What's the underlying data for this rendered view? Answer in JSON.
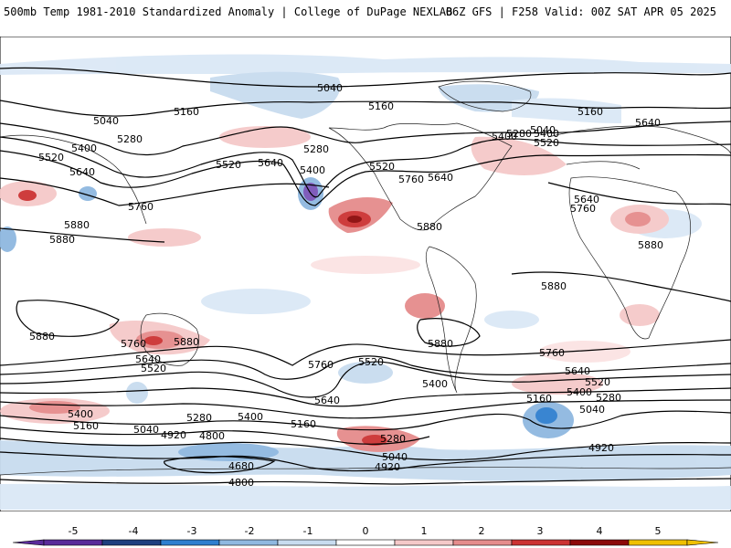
{
  "header": {
    "left": "500mb Temp 1981-2010 Standardized Anomaly | College of DuPage NEXLAB",
    "right": "06Z GFS | F258 Valid: 00Z SAT APR 05 2025"
  },
  "colorbar": {
    "ticks": [
      "-5",
      "-4",
      "-3",
      "-2",
      "-1",
      "0",
      "1",
      "2",
      "3",
      "4",
      "5"
    ],
    "colors": [
      "#5a2a9a",
      "#1f3f7f",
      "#2f7fcf",
      "#8fb8e0",
      "#c8dcef",
      "#ffffff",
      "#f5c9c9",
      "#e58c8c",
      "#cc3333",
      "#8c0a0a",
      "#f0c000"
    ]
  },
  "contour_labels": [
    "5040",
    "5160",
    "5280",
    "5400",
    "5520",
    "5640",
    "5760",
    "5880",
    "5160",
    "5040",
    "5280",
    "5400",
    "5520",
    "5640",
    "5400",
    "5520",
    "5760",
    "5640",
    "5880",
    "5880",
    "5880",
    "5640",
    "5760",
    "5880",
    "5160",
    "5640",
    "5520",
    "5400",
    "5280",
    "5040",
    "5880",
    "5760",
    "5880",
    "5640",
    "5520",
    "5400",
    "5160",
    "5040",
    "4920",
    "4800",
    "4680",
    "4800",
    "5280",
    "5400",
    "5160",
    "5280",
    "5040",
    "4920",
    "5760",
    "5520",
    "5640",
    "5880",
    "5400",
    "5520",
    "5640",
    "5760",
    "5400",
    "5280",
    "5160",
    "5040",
    "4920"
  ]
}
